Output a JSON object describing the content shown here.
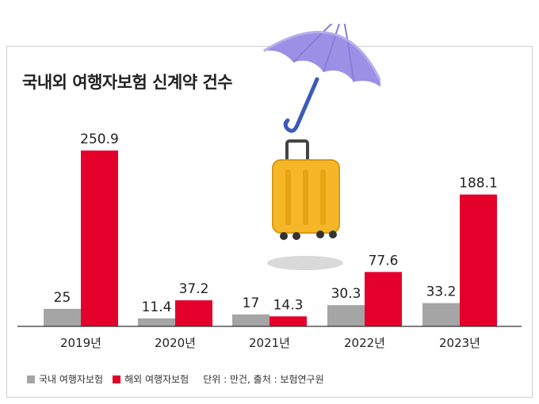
{
  "title": "국내외 여행자보험 신계약 건수",
  "colors": {
    "domestic": "#a5a5a5",
    "overseas": "#e5002b",
    "text": "#222222"
  },
  "legend": {
    "domestic_label": "국내 여행자보험",
    "overseas_label": "해외 여행자보험",
    "note": "단위 : 만건, 출처 : 보험연구원"
  },
  "chart_data": {
    "type": "bar",
    "title": "국내외 여행자보험 신계약 건수",
    "categories": [
      "2019년",
      "2020년",
      "2021년",
      "2022년",
      "2023년"
    ],
    "series": [
      {
        "name": "국내 여행자보험",
        "values": [
          25,
          11.4,
          17,
          30.3,
          33.2
        ],
        "labels": [
          "25",
          "11.4",
          "17",
          "30.3",
          "33.2"
        ]
      },
      {
        "name": "해외 여행자보험",
        "values": [
          250.9,
          37.2,
          14.3,
          77.6,
          188.1
        ],
        "labels": [
          "250.9",
          "37.2",
          "14.3",
          "77.6",
          "188.1"
        ]
      }
    ],
    "unit": "만건",
    "source": "보험연구원",
    "ylim": [
      0,
      260
    ],
    "grid": false,
    "legend_position": "bottom-left"
  }
}
